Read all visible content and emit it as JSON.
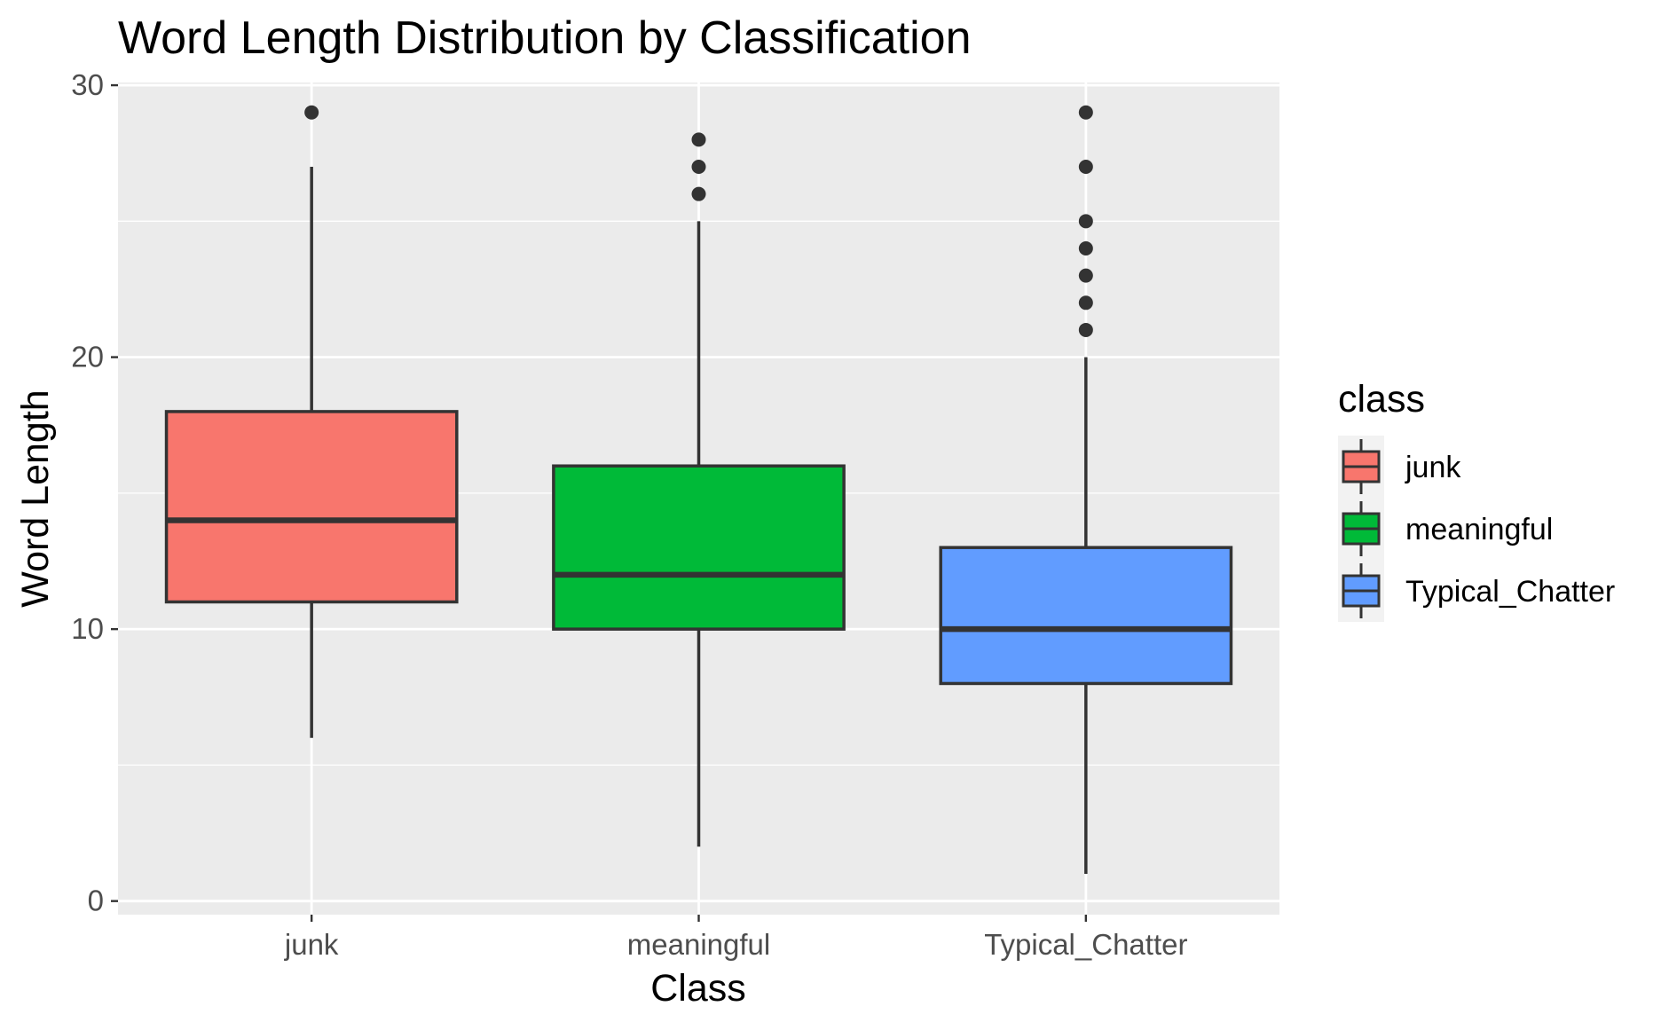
{
  "chart_data": {
    "type": "boxplot",
    "title": "Word Length Distribution by Classification",
    "xlabel": "Class",
    "ylabel": "Word Length",
    "categories": [
      "junk",
      "meaningful",
      "Typical_Chatter"
    ],
    "ylim": [
      -0.5,
      30.1
    ],
    "yticks": [
      0,
      10,
      20,
      30
    ],
    "grid": true,
    "legend": {
      "title": "class",
      "position": "right",
      "entries": [
        "junk",
        "meaningful",
        "Typical_Chatter"
      ]
    },
    "series": [
      {
        "name": "junk",
        "color": "#F8766D",
        "lower_whisker": 6,
        "q1": 11,
        "median": 14,
        "q3": 18,
        "upper_whisker": 27,
        "outliers": [
          29
        ]
      },
      {
        "name": "meaningful",
        "color": "#00BA38",
        "lower_whisker": 2,
        "q1": 10,
        "median": 12,
        "q3": 16,
        "upper_whisker": 25,
        "outliers": [
          26,
          27,
          28
        ]
      },
      {
        "name": "Typical_Chatter",
        "color": "#619CFF",
        "lower_whisker": 1,
        "q1": 8,
        "median": 10,
        "q3": 13,
        "upper_whisker": 20,
        "outliers": [
          21,
          22,
          23,
          24,
          25,
          27,
          29
        ]
      }
    ]
  },
  "colors": {
    "panel_background": "#EBEBEB",
    "grid_major": "#FFFFFF",
    "box_outline": "#333333"
  }
}
